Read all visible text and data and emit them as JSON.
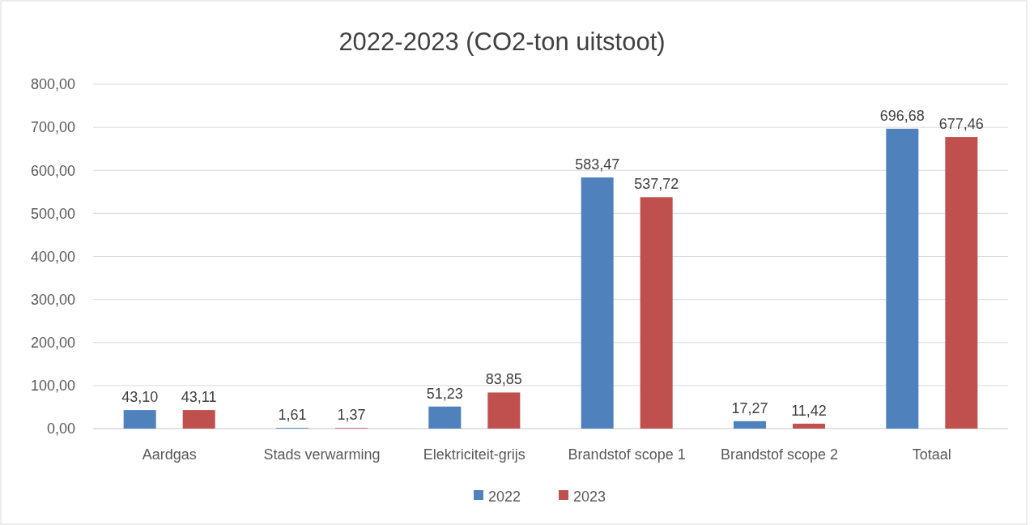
{
  "chart_data": {
    "type": "bar",
    "title": "2022-2023 (CO2-ton uitstoot)",
    "categories": [
      "Aardgas",
      "Stads verwarming",
      "Elektriciteit-grijs",
      "Brandstof scope 1",
      "Brandstof scope 2",
      "Totaal"
    ],
    "series": [
      {
        "name": "2022",
        "color": "#4f81bd",
        "values": [
          43.1,
          1.61,
          51.23,
          583.47,
          17.27,
          696.68
        ],
        "value_labels": [
          "43,10",
          "1,61",
          "51,23",
          "583,47",
          "17,27",
          "696,68"
        ]
      },
      {
        "name": "2023",
        "color": "#c0504d",
        "values": [
          43.11,
          1.37,
          83.85,
          537.72,
          11.42,
          677.46
        ],
        "value_labels": [
          "43,11",
          "1,37",
          "83,85",
          "537,72",
          "11,42",
          "677,46"
        ]
      }
    ],
    "ylim": [
      0,
      800
    ],
    "yticks": [
      {
        "value": 0,
        "label": "0,00"
      },
      {
        "value": 100,
        "label": "100,00"
      },
      {
        "value": 200,
        "label": "200,00"
      },
      {
        "value": 300,
        "label": "300,00"
      },
      {
        "value": 400,
        "label": "400,00"
      },
      {
        "value": 500,
        "label": "500,00"
      },
      {
        "value": 600,
        "label": "600,00"
      },
      {
        "value": 700,
        "label": "700,00"
      },
      {
        "value": 800,
        "label": "800,00"
      }
    ],
    "grid": "y",
    "legend": "bottom"
  }
}
